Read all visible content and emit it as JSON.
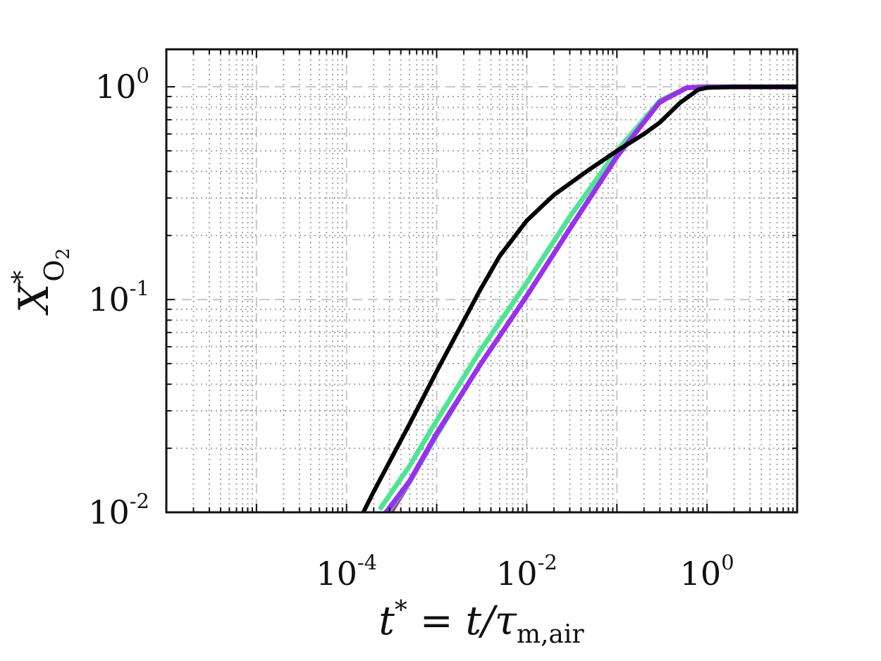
{
  "chart_data": {
    "type": "line",
    "xscale": "log",
    "yscale": "log",
    "xlim": [
      1e-06,
      10
    ],
    "ylim": [
      0.01,
      1.5
    ],
    "grid": true,
    "xlabel": {
      "base": "t",
      "sup": "*",
      "eq": " = t/",
      "tau": "τ",
      "sub": "m,air"
    },
    "ylabel": {
      "base": "X",
      "sup": "*",
      "sub": "O",
      "subsub": "2"
    },
    "x_ticks": [
      {
        "value": 0.0001,
        "base": "10",
        "exp": "-4"
      },
      {
        "value": 0.01,
        "base": "10",
        "exp": "-2"
      },
      {
        "value": 1,
        "base": "10",
        "exp": "0"
      }
    ],
    "y_ticks": [
      {
        "value": 0.01,
        "base": "10",
        "exp": "-2"
      },
      {
        "value": 0.1,
        "base": "10",
        "exp": "-1"
      },
      {
        "value": 1,
        "base": "10",
        "exp": "0"
      }
    ],
    "series": [
      {
        "color": "#e8194a",
        "width": 3,
        "points": [
          [
            0.0003,
            0.0095
          ],
          [
            0.0005,
            0.0135
          ],
          [
            0.001,
            0.0225
          ],
          [
            0.003,
            0.048
          ],
          [
            0.01,
            0.102
          ],
          [
            0.03,
            0.212
          ],
          [
            0.1,
            0.46
          ],
          [
            0.3,
            0.83
          ],
          [
            0.6,
            0.99
          ],
          [
            1,
            1.0
          ],
          [
            10,
            1.0
          ]
        ]
      },
      {
        "color": "#1fb5f2",
        "width": 6,
        "points": [
          [
            0.00027,
            0.0095
          ],
          [
            0.0005,
            0.0138
          ],
          [
            0.001,
            0.023
          ],
          [
            0.003,
            0.049
          ],
          [
            0.01,
            0.104
          ],
          [
            0.03,
            0.215
          ],
          [
            0.1,
            0.47
          ],
          [
            0.3,
            0.85
          ],
          [
            0.6,
            0.99
          ],
          [
            1,
            1.0
          ],
          [
            10,
            1.0
          ]
        ]
      },
      {
        "color": "#4de594",
        "width": 7,
        "points": [
          [
            0.00024,
            0.0105
          ],
          [
            0.0005,
            0.0165
          ],
          [
            0.001,
            0.027
          ],
          [
            0.003,
            0.057
          ],
          [
            0.01,
            0.12
          ],
          [
            0.03,
            0.245
          ],
          [
            0.1,
            0.5
          ],
          [
            0.3,
            0.86
          ],
          [
            0.6,
            0.99
          ],
          [
            1,
            1.0
          ],
          [
            10,
            1.0
          ]
        ]
      },
      {
        "color": "#9b2ff0",
        "width": 7,
        "points": [
          [
            0.00025,
            0.0095
          ],
          [
            0.0005,
            0.014
          ],
          [
            0.001,
            0.0235
          ],
          [
            0.003,
            0.049
          ],
          [
            0.01,
            0.104
          ],
          [
            0.03,
            0.215
          ],
          [
            0.1,
            0.47
          ],
          [
            0.3,
            0.85
          ],
          [
            0.6,
            0.99
          ],
          [
            1,
            1.0
          ],
          [
            10,
            1.0
          ]
        ]
      },
      {
        "color": "#000000",
        "width": 6,
        "points": [
          [
            0.00015,
            0.0098
          ],
          [
            0.0002,
            0.0125
          ],
          [
            0.0005,
            0.026
          ],
          [
            0.001,
            0.046
          ],
          [
            0.003,
            0.11
          ],
          [
            0.005,
            0.16
          ],
          [
            0.01,
            0.235
          ],
          [
            0.02,
            0.31
          ],
          [
            0.05,
            0.41
          ],
          [
            0.1,
            0.5
          ],
          [
            0.2,
            0.6
          ],
          [
            0.3,
            0.68
          ],
          [
            0.5,
            0.84
          ],
          [
            0.8,
            0.97
          ],
          [
            1,
            0.99
          ],
          [
            2,
            1.0
          ],
          [
            10,
            1.0
          ]
        ]
      }
    ]
  }
}
